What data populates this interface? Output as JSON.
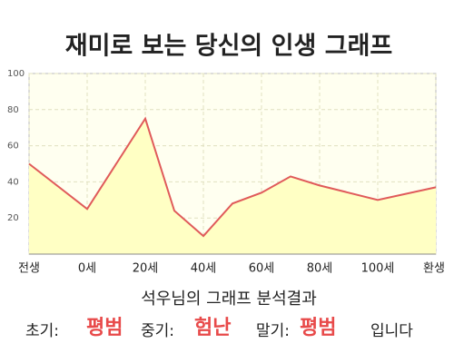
{
  "chart_data": {
    "type": "line",
    "title": "재미로 보는 당신의 인생 그래프",
    "x": [
      0,
      1,
      2,
      2.5,
      3,
      3.5,
      4,
      4.5,
      5,
      6,
      7
    ],
    "xlim": [
      0,
      7
    ],
    "xticks": [
      {
        "value": 0,
        "label": "전생"
      },
      {
        "value": 1,
        "label": "0세"
      },
      {
        "value": 2,
        "label": "20세"
      },
      {
        "value": 3,
        "label": "40세"
      },
      {
        "value": 4,
        "label": "60세"
      },
      {
        "value": 5,
        "label": "80세"
      },
      {
        "value": 6,
        "label": "100세"
      },
      {
        "value": 7,
        "label": "환생"
      }
    ],
    "values": [
      50,
      25,
      75,
      24,
      10,
      28,
      34,
      43,
      38,
      30,
      37
    ],
    "color": "#e05a5a",
    "fill": "#ffffc4",
    "ylim": [
      0,
      100
    ],
    "yticks": [
      20,
      40,
      60,
      80,
      100
    ],
    "grid": true
  },
  "analysis": {
    "heading": "석우님의 그래프 분석결과",
    "parts": [
      {
        "label": "초기:",
        "result": "평범"
      },
      {
        "label": "중기:",
        "result": "험난"
      },
      {
        "label": "말기:",
        "result": "평범"
      }
    ],
    "ending": "입니다"
  }
}
